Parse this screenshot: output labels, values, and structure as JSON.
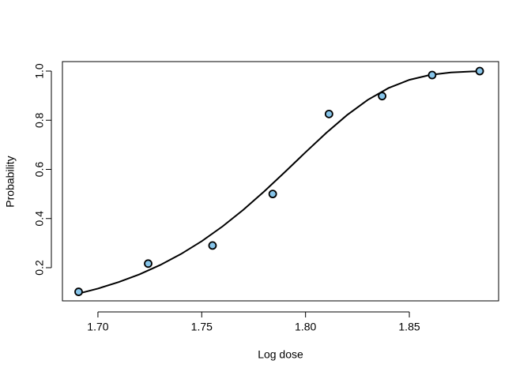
{
  "chart_data": {
    "type": "scatter",
    "xlabel": "Log dose",
    "ylabel": "Probability",
    "series": [
      {
        "x": [
          1.6907,
          1.7242,
          1.7552,
          1.7842,
          1.8113,
          1.8369,
          1.861,
          1.8839
        ],
        "values": [
          0.1017,
          0.2167,
          0.2903,
          0.5,
          0.8254,
          0.8983,
          0.9839,
          1.0
        ],
        "color": "#87c5ea",
        "kind": "points"
      },
      {
        "x": [
          1.69,
          1.7,
          1.71,
          1.72,
          1.73,
          1.74,
          1.75,
          1.76,
          1.77,
          1.78,
          1.79,
          1.8,
          1.81,
          1.82,
          1.83,
          1.84,
          1.85,
          1.86,
          1.87,
          1.88,
          1.885
        ],
        "values": [
          0.0934,
          0.115,
          0.1414,
          0.173,
          0.2109,
          0.2556,
          0.3078,
          0.3678,
          0.4354,
          0.5097,
          0.5887,
          0.6696,
          0.7485,
          0.8211,
          0.883,
          0.9311,
          0.9643,
          0.9843,
          0.9944,
          0.9984,
          0.9993
        ],
        "color": "#000000",
        "kind": "line"
      }
    ],
    "xlim": [
      1.6829,
      1.893
    ],
    "xticks": [
      {
        "value": 1.7,
        "label": "1.70"
      },
      {
        "value": 1.75,
        "label": "1.75"
      },
      {
        "value": 1.8,
        "label": "1.80"
      },
      {
        "value": 1.85,
        "label": "1.85"
      }
    ],
    "ylim": [
      0.065,
      1.0386
    ],
    "yticks": [
      0.2,
      0.4,
      0.6,
      0.8,
      {
        "value": 1,
        "label": "1.0"
      }
    ]
  }
}
